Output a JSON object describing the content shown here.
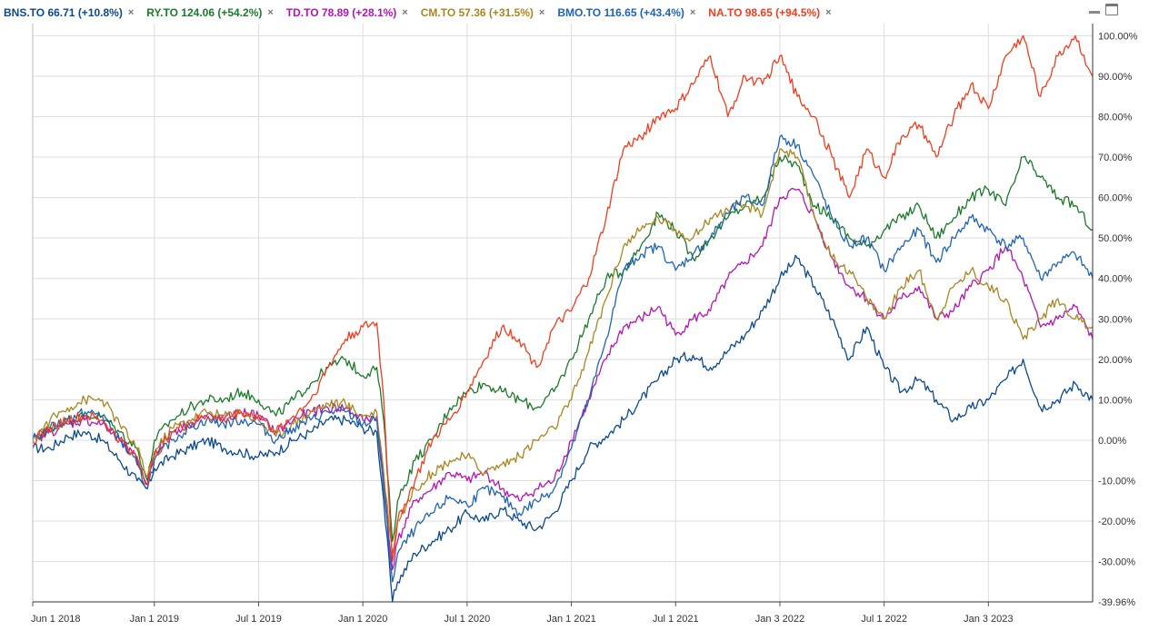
{
  "legend": [
    {
      "label": "BNS.TO 66.71 (+10.8%)",
      "color": "#0b4a8b",
      "remove": "×"
    },
    {
      "label": "RY.TO 124.06 (+54.2%)",
      "color": "#1a7a2a",
      "remove": "×"
    },
    {
      "label": "TD.TO 78.89 (+28.1%)",
      "color": "#b314b3",
      "remove": "×"
    },
    {
      "label": "CM.TO 57.36 (+31.5%)",
      "color": "#a88620",
      "remove": "×"
    },
    {
      "label": "BMO.TO 116.65 (+43.4%)",
      "color": "#1f64b4",
      "remove": "×"
    },
    {
      "label": "NA.TO 98.65 (+94.5%)",
      "color": "#f03c1e",
      "remove": "×"
    }
  ],
  "controls": {
    "minimize": "minimize-icon",
    "window": "window-icon"
  },
  "chart_data": {
    "type": "line",
    "x_tick_labels": [
      "Jun 1 2018",
      "Jan 1 2019",
      "Jul 1 2019",
      "Jan 1 2020",
      "Jul 1 2020",
      "Jan 1 2021",
      "Jul 1 2021",
      "Jan 3 2022",
      "Jul 1 2022",
      "Jan 3 2023"
    ],
    "x_tick_months": [
      0,
      7,
      13,
      19,
      25,
      31,
      37,
      43,
      49,
      55
    ],
    "x_range_months": [
      0,
      61
    ],
    "y_tick_labels": [
      "100.00%",
      "90.00%",
      "80.00%",
      "70.00%",
      "60.00%",
      "50.00%",
      "40.00%",
      "30.00%",
      "20.00%",
      "10.00%",
      "0.00%",
      "-10.00%",
      "-20.00%",
      "-30.00%",
      "-39.96%"
    ],
    "y_tick_values": [
      100,
      90,
      80,
      70,
      60,
      50,
      40,
      30,
      20,
      10,
      0,
      -10,
      -20,
      -30,
      -39.96
    ],
    "ylim": [
      -39.96,
      103
    ],
    "grid": true,
    "legend_position": "top-left",
    "series": [
      {
        "name": "BNS.TO",
        "color": "#0b4a8b",
        "x": [
          0,
          1,
          2,
          3,
          4,
          5,
          6,
          6.6,
          7,
          8,
          9,
          10,
          11,
          12,
          13,
          14,
          15,
          16,
          17,
          18,
          19,
          19.8,
          20.2,
          20.7,
          21,
          22,
          23,
          24,
          25,
          26,
          27,
          28,
          29,
          30,
          31,
          32,
          33,
          34,
          35,
          36,
          37,
          38,
          39,
          40,
          41,
          42,
          43,
          44,
          45,
          46,
          47,
          48,
          49,
          50,
          51,
          52,
          53,
          54,
          55,
          56,
          57,
          58,
          59,
          60,
          61
        ],
        "y": [
          -2,
          -2,
          1,
          2,
          0,
          -5,
          -10,
          -12,
          -7,
          -4,
          -2,
          0,
          -2,
          -3,
          -4,
          -3,
          0,
          2,
          5,
          5,
          3,
          2,
          -15,
          -39.96,
          -35,
          -28,
          -25,
          -22,
          -18,
          -20,
          -17,
          -20,
          -22,
          -18,
          -10,
          -2,
          1,
          5,
          10,
          15,
          20,
          21,
          18,
          22,
          26,
          32,
          40,
          45,
          38,
          30,
          20,
          28,
          18,
          12,
          15,
          10,
          5,
          8,
          10,
          15,
          20,
          8,
          10,
          14,
          10
        ]
      },
      {
        "name": "RY.TO",
        "color": "#1a7a2a",
        "x": [
          0,
          1,
          2,
          3,
          4,
          5,
          6,
          6.6,
          7,
          8,
          9,
          10,
          11,
          12,
          13,
          14,
          15,
          16,
          17,
          18,
          19,
          19.8,
          20.2,
          20.7,
          21,
          22,
          23,
          24,
          25,
          26,
          27,
          28,
          29,
          30,
          31,
          32,
          33,
          34,
          35,
          36,
          37,
          38,
          39,
          40,
          41,
          42,
          43,
          44,
          45,
          46,
          47,
          48,
          49,
          50,
          51,
          52,
          53,
          54,
          55,
          56,
          57,
          58,
          59,
          60,
          61
        ],
        "y": [
          0,
          3,
          5,
          6,
          6,
          2,
          -2,
          -10,
          0,
          5,
          8,
          10,
          10,
          12,
          10,
          6,
          10,
          14,
          18,
          20,
          16,
          18,
          5,
          -25,
          -15,
          -5,
          0,
          8,
          12,
          14,
          12,
          10,
          8,
          12,
          20,
          30,
          40,
          42,
          48,
          56,
          52,
          45,
          50,
          55,
          58,
          60,
          70,
          68,
          58,
          55,
          50,
          48,
          52,
          55,
          58,
          50,
          55,
          60,
          62,
          58,
          70,
          65,
          60,
          58,
          52
        ]
      },
      {
        "name": "TD.TO",
        "color": "#b314b3",
        "x": [
          0,
          1,
          2,
          3,
          4,
          5,
          6,
          6.6,
          7,
          8,
          9,
          10,
          11,
          12,
          13,
          14,
          15,
          16,
          17,
          18,
          19,
          19.8,
          20.2,
          20.7,
          21,
          22,
          23,
          24,
          25,
          26,
          27,
          28,
          29,
          30,
          31,
          32,
          33,
          34,
          35,
          36,
          37,
          38,
          39,
          40,
          41,
          42,
          43,
          44,
          45,
          46,
          47,
          48,
          49,
          50,
          51,
          52,
          53,
          54,
          55,
          56,
          57,
          58,
          59,
          60,
          61
        ],
        "y": [
          0,
          2,
          4,
          5,
          4,
          0,
          -5,
          -11,
          -3,
          2,
          4,
          6,
          5,
          7,
          6,
          2,
          5,
          7,
          8,
          8,
          5,
          6,
          -10,
          -32,
          -25,
          -15,
          -12,
          -8,
          -10,
          -8,
          -12,
          -15,
          -12,
          -10,
          0,
          10,
          20,
          28,
          30,
          33,
          26,
          30,
          32,
          40,
          44,
          48,
          60,
          62,
          55,
          45,
          38,
          35,
          30,
          35,
          38,
          30,
          32,
          38,
          42,
          48,
          40,
          28,
          30,
          33,
          25
        ]
      },
      {
        "name": "CM.TO",
        "color": "#a88620",
        "x": [
          0,
          1,
          2,
          3,
          4,
          5,
          6,
          6.6,
          7,
          8,
          9,
          10,
          11,
          12,
          13,
          14,
          15,
          16,
          17,
          18,
          19,
          19.8,
          20.2,
          20.7,
          21,
          22,
          23,
          24,
          25,
          26,
          27,
          28,
          29,
          30,
          31,
          32,
          33,
          34,
          35,
          36,
          37,
          38,
          39,
          40,
          41,
          42,
          43,
          44,
          45,
          46,
          47,
          48,
          49,
          50,
          51,
          52,
          53,
          54,
          55,
          56,
          57,
          58,
          59,
          60,
          61
        ],
        "y": [
          0,
          5,
          8,
          10,
          10,
          4,
          -2,
          -9,
          -3,
          3,
          5,
          7,
          6,
          7,
          5,
          1,
          4,
          7,
          9,
          9,
          6,
          7,
          -8,
          -28,
          -20,
          -12,
          -8,
          -5,
          -4,
          -8,
          -6,
          -4,
          0,
          3,
          10,
          22,
          35,
          48,
          52,
          55,
          52,
          50,
          55,
          57,
          58,
          56,
          72,
          70,
          55,
          45,
          42,
          35,
          30,
          38,
          42,
          30,
          38,
          42,
          38,
          35,
          25,
          30,
          35,
          30,
          28
        ]
      },
      {
        "name": "BMO.TO",
        "color": "#1f64b4",
        "x": [
          0,
          1,
          2,
          3,
          4,
          5,
          6,
          6.6,
          7,
          8,
          9,
          10,
          11,
          12,
          13,
          14,
          15,
          16,
          17,
          18,
          19,
          19.8,
          20.2,
          20.7,
          21,
          22,
          23,
          24,
          25,
          26,
          27,
          28,
          29,
          30,
          31,
          32,
          33,
          34,
          35,
          36,
          37,
          38,
          39,
          40,
          41,
          42,
          43,
          44,
          45,
          46,
          47,
          48,
          49,
          50,
          51,
          52,
          53,
          54,
          55,
          56,
          57,
          58,
          59,
          60,
          61
        ],
        "y": [
          0,
          3,
          5,
          7,
          6,
          0,
          -6,
          -12,
          -5,
          0,
          3,
          5,
          4,
          5,
          4,
          0,
          3,
          5,
          7,
          7,
          4,
          5,
          -12,
          -35,
          -28,
          -22,
          -18,
          -14,
          -16,
          -12,
          -14,
          -18,
          -15,
          -12,
          -2,
          10,
          25,
          42,
          46,
          48,
          42,
          46,
          50,
          56,
          60,
          58,
          75,
          73,
          65,
          55,
          48,
          50,
          42,
          48,
          52,
          44,
          50,
          55,
          52,
          48,
          50,
          40,
          44,
          46,
          40
        ]
      },
      {
        "name": "NA.TO",
        "color": "#f03c1e",
        "x": [
          0,
          1,
          2,
          3,
          4,
          5,
          6,
          6.6,
          7,
          8,
          9,
          10,
          11,
          12,
          13,
          14,
          15,
          16,
          17,
          18,
          19,
          19.8,
          20.2,
          20.7,
          21,
          22,
          23,
          24,
          25,
          26,
          27,
          28,
          29,
          30,
          31,
          32,
          33,
          34,
          35,
          36,
          37,
          38,
          39,
          40,
          41,
          42,
          43,
          44,
          45,
          46,
          47,
          48,
          49,
          50,
          51,
          52,
          53,
          54,
          55,
          56,
          57,
          58,
          59,
          60,
          61
        ],
        "y": [
          0,
          3,
          5,
          6,
          5,
          0,
          -4,
          -11,
          -4,
          2,
          4,
          6,
          5,
          7,
          6,
          2,
          6,
          10,
          18,
          25,
          28,
          29,
          10,
          -30,
          -20,
          -10,
          0,
          5,
          12,
          20,
          28,
          25,
          18,
          28,
          32,
          40,
          55,
          72,
          75,
          80,
          82,
          88,
          95,
          80,
          90,
          88,
          95,
          85,
          80,
          70,
          60,
          72,
          65,
          75,
          78,
          70,
          80,
          88,
          82,
          95,
          100,
          85,
          95,
          100,
          90
        ]
      }
    ]
  }
}
